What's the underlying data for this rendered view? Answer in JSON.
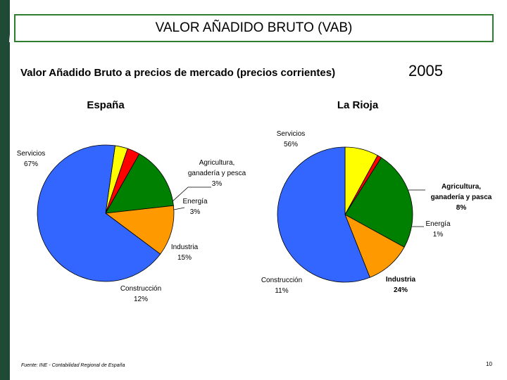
{
  "slide": {
    "title": "VALOR AÑADIDO BRUTO (VAB)",
    "subtitle": "Valor Añadido Bruto a precios de mercado (precios corrientes)",
    "year": "2005",
    "source": "Fuente: INE - Contabilidad Regional de España",
    "page_number": "10"
  },
  "chart_data": [
    {
      "type": "pie",
      "title": "España",
      "slices": [
        {
          "label": "Agricultura, ganadería y pesca",
          "label_lines": [
            "Agricultura,",
            "ganadería y pesca",
            "3%"
          ],
          "value": 3,
          "color": "#ffff00"
        },
        {
          "label": "Energía",
          "label_lines": [
            "Energía",
            "3%"
          ],
          "value": 3,
          "color": "#ff0000"
        },
        {
          "label": "Industria",
          "label_lines": [
            "Industria",
            "15%"
          ],
          "value": 15,
          "color": "#008000"
        },
        {
          "label": "Construcción",
          "label_lines": [
            "Construcción",
            "12%"
          ],
          "value": 12,
          "color": "#ff9900"
        },
        {
          "label": "Servicios",
          "label_lines": [
            "Servicios",
            "67%"
          ],
          "value": 67,
          "color": "#3366ff"
        }
      ]
    },
    {
      "type": "pie",
      "title": "La Rioja",
      "slices": [
        {
          "label": "Agricultura, ganadería y pesca",
          "label_lines": [
            "Agricultura,",
            "ganadería y pasca",
            "8%"
          ],
          "value": 8,
          "color": "#ffff00"
        },
        {
          "label": "Energía",
          "label_lines": [
            "Energía",
            "1%"
          ],
          "value": 1,
          "color": "#ff0000"
        },
        {
          "label": "Industria",
          "label_lines": [
            "Industria",
            "24%"
          ],
          "value": 24,
          "color": "#008000"
        },
        {
          "label": "Construcción",
          "label_lines": [
            "Construcción",
            "11%"
          ],
          "value": 11,
          "color": "#ff9900"
        },
        {
          "label": "Servicios",
          "label_lines": [
            "Servicios",
            "56%"
          ],
          "value": 56,
          "color": "#3366ff"
        }
      ]
    }
  ]
}
